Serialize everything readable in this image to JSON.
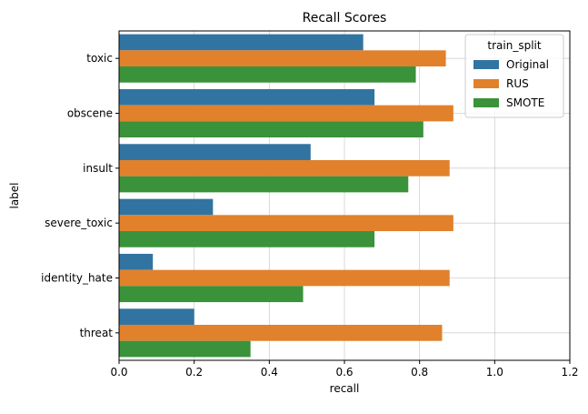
{
  "chart_data": {
    "type": "bar",
    "orientation": "horizontal",
    "title": "Recall Scores",
    "xlabel": "recall",
    "ylabel": "label",
    "xlim": [
      0,
      1.2
    ],
    "xticks": [
      "0.0",
      "0.2",
      "0.4",
      "0.6",
      "0.8",
      "1.0",
      "1.2"
    ],
    "grid": true,
    "legend_title": "train_split",
    "legend_position": "top-right",
    "categories": [
      "toxic",
      "obscene",
      "insult",
      "severe_toxic",
      "identity_hate",
      "threat"
    ],
    "series": [
      {
        "name": "Original",
        "color": "#3274a1",
        "values": [
          0.65,
          0.68,
          0.51,
          0.25,
          0.09,
          0.2
        ]
      },
      {
        "name": "RUS",
        "color": "#e1812c",
        "values": [
          0.87,
          0.89,
          0.88,
          0.89,
          0.88,
          0.86
        ]
      },
      {
        "name": "SMOTE",
        "color": "#3a923a",
        "values": [
          0.79,
          0.81,
          0.77,
          0.68,
          0.49,
          0.35
        ]
      }
    ]
  }
}
